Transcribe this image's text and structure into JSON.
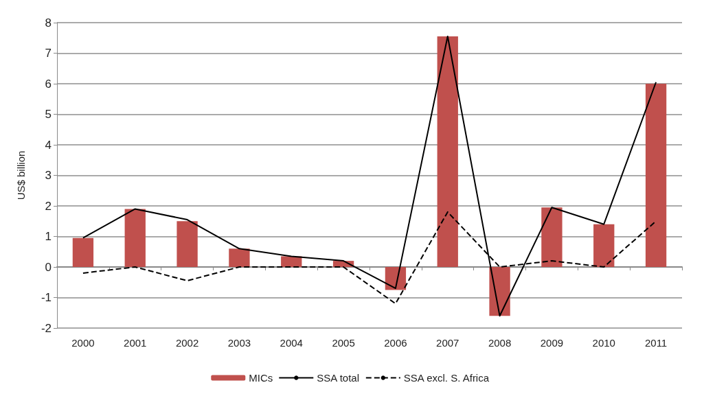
{
  "chart_data": {
    "type": "bar",
    "ylabel": "US$ billion",
    "categories": [
      "2000",
      "2001",
      "2002",
      "2003",
      "2004",
      "2005",
      "2006",
      "2007",
      "2008",
      "2009",
      "2010",
      "2011"
    ],
    "series": [
      {
        "name": "MICs",
        "color": "#c0504d",
        "values": [
          0.95,
          1.9,
          1.5,
          0.6,
          0.35,
          0.2,
          -0.75,
          7.55,
          -1.6,
          1.95,
          1.4,
          6.0
        ]
      },
      {
        "name": "SSA total",
        "type": "line",
        "color": "#000000",
        "line_style": "solid",
        "values": [
          0.95,
          1.9,
          1.55,
          0.6,
          0.35,
          0.2,
          -0.7,
          7.55,
          -1.6,
          1.95,
          1.4,
          6.05
        ]
      },
      {
        "name": "SSA excl. S. Africa",
        "type": "line",
        "color": "#000000",
        "line_style": "dashed",
        "values": [
          -0.2,
          0,
          -0.45,
          0,
          0,
          0,
          -1.2,
          1.8,
          0,
          0.2,
          0,
          1.5
        ]
      }
    ],
    "ylim": [
      -2,
      8
    ],
    "yticks": [
      -2,
      -1,
      0,
      1,
      2,
      3,
      4,
      5,
      6,
      7,
      8
    ],
    "grid": "y",
    "legend": "bottom",
    "marker": "none"
  }
}
